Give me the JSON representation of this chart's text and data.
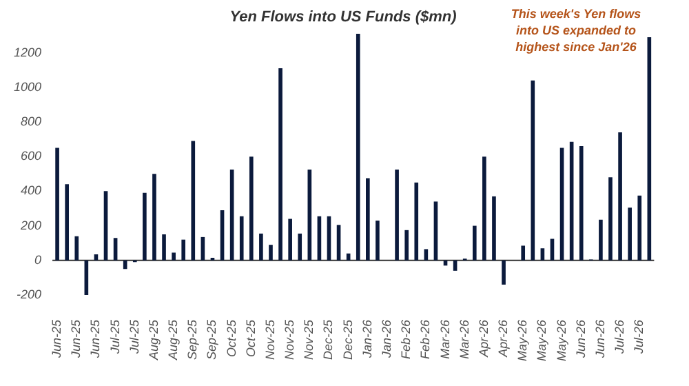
{
  "chart_data": {
    "type": "bar",
    "title": "Yen Flows into US Funds ($mn)",
    "categories": [
      "Jun-25",
      null,
      "Jun-25",
      null,
      "Jun-25",
      null,
      "Jul-25",
      null,
      "Jul-25",
      null,
      "Aug-25",
      null,
      "Aug-25",
      null,
      "Sep-25",
      null,
      "Sep-25",
      null,
      "Oct-25",
      null,
      "Oct-25",
      null,
      "Nov-25",
      null,
      "Nov-25",
      null,
      "Nov-25",
      null,
      "Dec-25",
      null,
      "Dec-25",
      null,
      "Jan-26",
      null,
      "Jan-26",
      null,
      "Feb-26",
      null,
      "Feb-26",
      null,
      "Mar-26",
      null,
      "Mar-26",
      null,
      "Apr-26",
      null,
      "Apr-26",
      null,
      "May-26",
      null,
      "May-26",
      null,
      "May-26",
      null,
      "Jun-26",
      null,
      "Jun-26",
      null,
      "Jul-26",
      null,
      "Jul-26",
      null
    ],
    "values": [
      650,
      440,
      140,
      -200,
      35,
      400,
      130,
      -50,
      -10,
      390,
      500,
      150,
      45,
      120,
      690,
      135,
      15,
      290,
      525,
      255,
      600,
      155,
      90,
      1110,
      240,
      155,
      525,
      255,
      255,
      205,
      40,
      1310,
      475,
      230,
      0,
      525,
      175,
      450,
      65,
      340,
      -30,
      -60,
      10,
      200,
      600,
      370,
      -140,
      0,
      85,
      1040,
      70,
      125,
      650,
      685,
      660,
      5,
      235,
      480,
      740,
      305,
      375,
      1290
    ],
    "color": "#0b1a3c",
    "ylim": [
      -200,
      1320
    ],
    "yticks": [
      -200,
      0,
      200,
      400,
      600,
      800,
      {
        "value": 1000,
        "label": "1000"
      },
      {
        "value": 1200,
        "label": "1200"
      }
    ],
    "legend": false,
    "annotations": [
      "This week's Yen flows\ninto US expanded to\nhighest since Jan'26"
    ]
  }
}
